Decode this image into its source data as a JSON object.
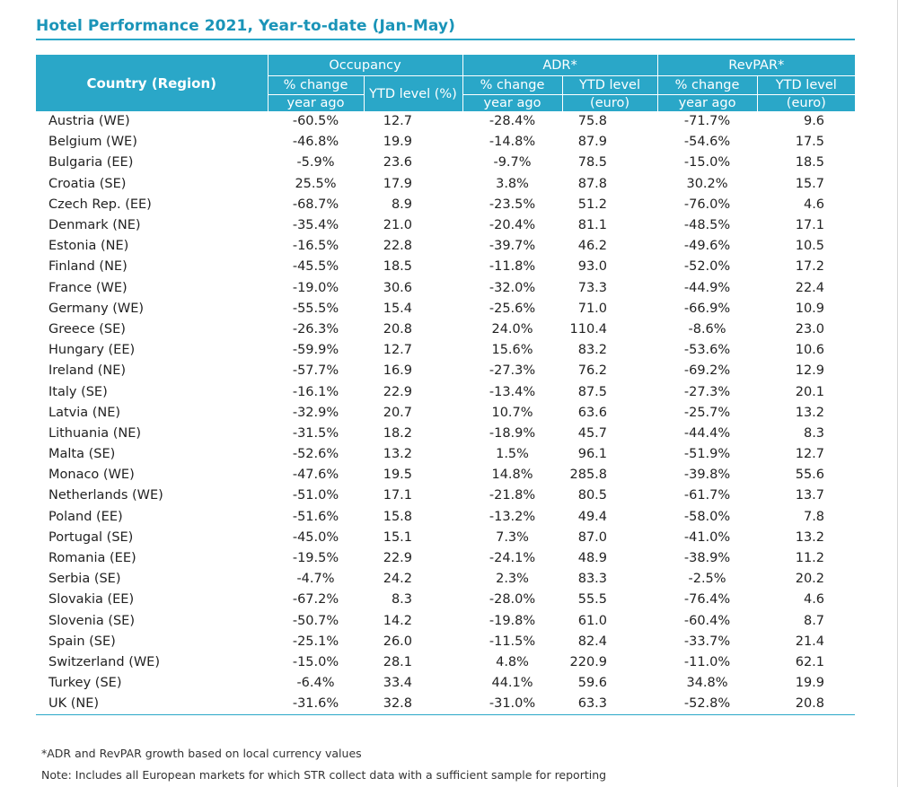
{
  "title": "Hotel Performance 2021, Year-to-date (Jan-May)",
  "header": {
    "country": "Country (Region)",
    "groups": {
      "occupancy": "Occupancy",
      "adr": "ADR*",
      "revpar": "RevPAR*"
    },
    "pct_line1": "% change",
    "pct_line2": "year ago",
    "occ_level": "YTD level (%)",
    "lvl_line1": "YTD level",
    "lvl_line2": "(euro)"
  },
  "rows": [
    {
      "country": "Austria (WE)",
      "occ_pct": "-60.5%",
      "occ_lvl": "12.7",
      "adr_pct": "-28.4%",
      "adr_lvl": "75.8",
      "rev_pct": "-71.7%",
      "rev_lvl": "9.6"
    },
    {
      "country": "Belgium (WE)",
      "occ_pct": "-46.8%",
      "occ_lvl": "19.9",
      "adr_pct": "-14.8%",
      "adr_lvl": "87.9",
      "rev_pct": "-54.6%",
      "rev_lvl": "17.5"
    },
    {
      "country": "Bulgaria (EE)",
      "occ_pct": "-5.9%",
      "occ_lvl": "23.6",
      "adr_pct": "-9.7%",
      "adr_lvl": "78.5",
      "rev_pct": "-15.0%",
      "rev_lvl": "18.5"
    },
    {
      "country": "Croatia (SE)",
      "occ_pct": "25.5%",
      "occ_lvl": "17.9",
      "adr_pct": "3.8%",
      "adr_lvl": "87.8",
      "rev_pct": "30.2%",
      "rev_lvl": "15.7"
    },
    {
      "country": "Czech Rep. (EE)",
      "occ_pct": "-68.7%",
      "occ_lvl": "8.9",
      "adr_pct": "-23.5%",
      "adr_lvl": "51.2",
      "rev_pct": "-76.0%",
      "rev_lvl": "4.6"
    },
    {
      "country": "Denmark (NE)",
      "occ_pct": "-35.4%",
      "occ_lvl": "21.0",
      "adr_pct": "-20.4%",
      "adr_lvl": "81.1",
      "rev_pct": "-48.5%",
      "rev_lvl": "17.1"
    },
    {
      "country": "Estonia (NE)",
      "occ_pct": "-16.5%",
      "occ_lvl": "22.8",
      "adr_pct": "-39.7%",
      "adr_lvl": "46.2",
      "rev_pct": "-49.6%",
      "rev_lvl": "10.5"
    },
    {
      "country": "Finland (NE)",
      "occ_pct": "-45.5%",
      "occ_lvl": "18.5",
      "adr_pct": "-11.8%",
      "adr_lvl": "93.0",
      "rev_pct": "-52.0%",
      "rev_lvl": "17.2"
    },
    {
      "country": "France (WE)",
      "occ_pct": "-19.0%",
      "occ_lvl": "30.6",
      "adr_pct": "-32.0%",
      "adr_lvl": "73.3",
      "rev_pct": "-44.9%",
      "rev_lvl": "22.4"
    },
    {
      "country": "Germany (WE)",
      "occ_pct": "-55.5%",
      "occ_lvl": "15.4",
      "adr_pct": "-25.6%",
      "adr_lvl": "71.0",
      "rev_pct": "-66.9%",
      "rev_lvl": "10.9"
    },
    {
      "country": "Greece (SE)",
      "occ_pct": "-26.3%",
      "occ_lvl": "20.8",
      "adr_pct": "24.0%",
      "adr_lvl": "110.4",
      "rev_pct": "-8.6%",
      "rev_lvl": "23.0"
    },
    {
      "country": "Hungary (EE)",
      "occ_pct": "-59.9%",
      "occ_lvl": "12.7",
      "adr_pct": "15.6%",
      "adr_lvl": "83.2",
      "rev_pct": "-53.6%",
      "rev_lvl": "10.6"
    },
    {
      "country": "Ireland (NE)",
      "occ_pct": "-57.7%",
      "occ_lvl": "16.9",
      "adr_pct": "-27.3%",
      "adr_lvl": "76.2",
      "rev_pct": "-69.2%",
      "rev_lvl": "12.9"
    },
    {
      "country": "Italy (SE)",
      "occ_pct": "-16.1%",
      "occ_lvl": "22.9",
      "adr_pct": "-13.4%",
      "adr_lvl": "87.5",
      "rev_pct": "-27.3%",
      "rev_lvl": "20.1"
    },
    {
      "country": "Latvia (NE)",
      "occ_pct": "-32.9%",
      "occ_lvl": "20.7",
      "adr_pct": "10.7%",
      "adr_lvl": "63.6",
      "rev_pct": "-25.7%",
      "rev_lvl": "13.2"
    },
    {
      "country": "Lithuania (NE)",
      "occ_pct": "-31.5%",
      "occ_lvl": "18.2",
      "adr_pct": "-18.9%",
      "adr_lvl": "45.7",
      "rev_pct": "-44.4%",
      "rev_lvl": "8.3"
    },
    {
      "country": "Malta (SE)",
      "occ_pct": "-52.6%",
      "occ_lvl": "13.2",
      "adr_pct": "1.5%",
      "adr_lvl": "96.1",
      "rev_pct": "-51.9%",
      "rev_lvl": "12.7"
    },
    {
      "country": "Monaco (WE)",
      "occ_pct": "-47.6%",
      "occ_lvl": "19.5",
      "adr_pct": "14.8%",
      "adr_lvl": "285.8",
      "rev_pct": "-39.8%",
      "rev_lvl": "55.6"
    },
    {
      "country": "Netherlands (WE)",
      "occ_pct": "-51.0%",
      "occ_lvl": "17.1",
      "adr_pct": "-21.8%",
      "adr_lvl": "80.5",
      "rev_pct": "-61.7%",
      "rev_lvl": "13.7"
    },
    {
      "country": "Poland (EE)",
      "occ_pct": "-51.6%",
      "occ_lvl": "15.8",
      "adr_pct": "-13.2%",
      "adr_lvl": "49.4",
      "rev_pct": "-58.0%",
      "rev_lvl": "7.8"
    },
    {
      "country": "Portugal (SE)",
      "occ_pct": "-45.0%",
      "occ_lvl": "15.1",
      "adr_pct": "7.3%",
      "adr_lvl": "87.0",
      "rev_pct": "-41.0%",
      "rev_lvl": "13.2"
    },
    {
      "country": "Romania (EE)",
      "occ_pct": "-19.5%",
      "occ_lvl": "22.9",
      "adr_pct": "-24.1%",
      "adr_lvl": "48.9",
      "rev_pct": "-38.9%",
      "rev_lvl": "11.2"
    },
    {
      "country": "Serbia (SE)",
      "occ_pct": "-4.7%",
      "occ_lvl": "24.2",
      "adr_pct": "2.3%",
      "adr_lvl": "83.3",
      "rev_pct": "-2.5%",
      "rev_lvl": "20.2"
    },
    {
      "country": "Slovakia (EE)",
      "occ_pct": "-67.2%",
      "occ_lvl": "8.3",
      "adr_pct": "-28.0%",
      "adr_lvl": "55.5",
      "rev_pct": "-76.4%",
      "rev_lvl": "4.6"
    },
    {
      "country": "Slovenia (SE)",
      "occ_pct": "-50.7%",
      "occ_lvl": "14.2",
      "adr_pct": "-19.8%",
      "adr_lvl": "61.0",
      "rev_pct": "-60.4%",
      "rev_lvl": "8.7"
    },
    {
      "country": "Spain (SE)",
      "occ_pct": "-25.1%",
      "occ_lvl": "26.0",
      "adr_pct": "-11.5%",
      "adr_lvl": "82.4",
      "rev_pct": "-33.7%",
      "rev_lvl": "21.4"
    },
    {
      "country": "Switzerland (WE)",
      "occ_pct": "-15.0%",
      "occ_lvl": "28.1",
      "adr_pct": "4.8%",
      "adr_lvl": "220.9",
      "rev_pct": "-11.0%",
      "rev_lvl": "62.1"
    },
    {
      "country": "Turkey (SE)",
      "occ_pct": "-6.4%",
      "occ_lvl": "33.4",
      "adr_pct": "44.1%",
      "adr_lvl": "59.6",
      "rev_pct": "34.8%",
      "rev_lvl": "19.9"
    },
    {
      "country": "UK (NE)",
      "occ_pct": "-31.6%",
      "occ_lvl": "32.8",
      "adr_pct": "-31.0%",
      "adr_lvl": "63.3",
      "rev_pct": "-52.8%",
      "rev_lvl": "20.8"
    }
  ],
  "footnotes": [
    "*ADR and RevPAR growth based on local currency values",
    "Note: Includes all European markets for which STR collect data with a sufficient sample for reporting"
  ],
  "colors": {
    "accent": "#2aa7c8",
    "title": "#1a94b8"
  }
}
